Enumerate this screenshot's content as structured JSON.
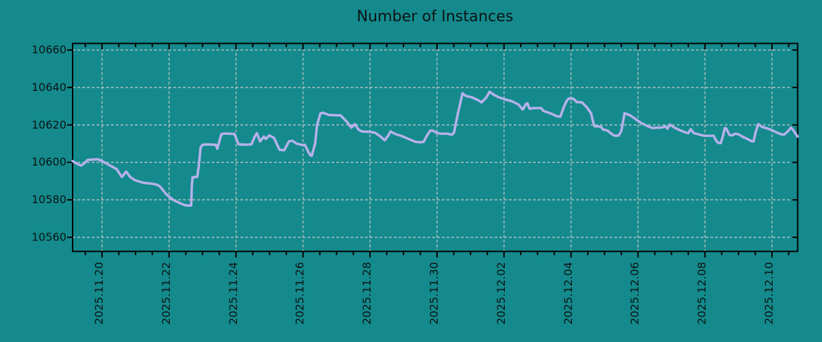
{
  "chart_data": {
    "type": "line",
    "title": "Number of Instances",
    "background_color": "#148a8d",
    "line_color": "#b6b1ea",
    "grid_color": "#c9c9c9",
    "axis_color": "#000000",
    "text_color": "#0b1413",
    "grid": true,
    "legend": false,
    "x_unit": "days since 2025.11.20",
    "xlim_days": [
      -0.88,
      20.76
    ],
    "x_tick_labels": [
      "2025.11.20",
      "2025.11.22",
      "2025.11.24",
      "2025.11.26",
      "2025.11.28",
      "2025.11.30",
      "2025.12.02",
      "2025.12.04",
      "2025.12.06",
      "2025.12.08",
      "2025.12.10"
    ],
    "x_major_tick_days": [
      0,
      2,
      4,
      6,
      8,
      10,
      12,
      14,
      16,
      18,
      20
    ],
    "x_minor_tick_step_days": 0.5,
    "y_ticks": [
      10560,
      10580,
      10600,
      10620,
      10640,
      10660
    ],
    "ylim": [
      10552.5,
      10663.5
    ],
    "series": [
      {
        "name": "Number of Instances",
        "color": "#b6b1ea",
        "points": [
          [
            -0.88,
            10600.7
          ],
          [
            -0.76,
            10599.4
          ],
          [
            -0.63,
            10598.3
          ],
          [
            -0.53,
            10599.5
          ],
          [
            -0.43,
            10601.3
          ],
          [
            -0.29,
            10601.5
          ],
          [
            -0.12,
            10601.7
          ],
          [
            0.06,
            10600.1
          ],
          [
            0.27,
            10598.0
          ],
          [
            0.43,
            10596.5
          ],
          [
            0.59,
            10592.2
          ],
          [
            0.72,
            10595.1
          ],
          [
            0.84,
            10592.2
          ],
          [
            0.98,
            10590.5
          ],
          [
            1.1,
            10589.8
          ],
          [
            1.25,
            10589.1
          ],
          [
            1.49,
            10588.6
          ],
          [
            1.62,
            10588.2
          ],
          [
            1.72,
            10587.3
          ],
          [
            1.8,
            10585.6
          ],
          [
            1.86,
            10584.2
          ],
          [
            1.92,
            10583.0
          ],
          [
            2.0,
            10581.7
          ],
          [
            2.07,
            10580.8
          ],
          [
            2.13,
            10579.9
          ],
          [
            2.21,
            10579.2
          ],
          [
            2.31,
            10578.4
          ],
          [
            2.41,
            10577.6
          ],
          [
            2.47,
            10577.2
          ],
          [
            2.56,
            10577.0
          ],
          [
            2.66,
            10577.0
          ],
          [
            2.68,
            10588.0
          ],
          [
            2.7,
            10592.0
          ],
          [
            2.78,
            10592.2
          ],
          [
            2.84,
            10592.3
          ],
          [
            2.88,
            10597.0
          ],
          [
            2.91,
            10602.0
          ],
          [
            2.94,
            10608.0
          ],
          [
            3.0,
            10609.4
          ],
          [
            3.15,
            10609.6
          ],
          [
            3.3,
            10609.5
          ],
          [
            3.4,
            10609.4
          ],
          [
            3.44,
            10607.3
          ],
          [
            3.5,
            10611.0
          ],
          [
            3.56,
            10615.0
          ],
          [
            3.65,
            10615.4
          ],
          [
            3.8,
            10615.3
          ],
          [
            3.95,
            10615.2
          ],
          [
            4.02,
            10612.0
          ],
          [
            4.07,
            10609.7
          ],
          [
            4.2,
            10609.5
          ],
          [
            4.35,
            10609.5
          ],
          [
            4.46,
            10609.6
          ],
          [
            4.55,
            10613.5
          ],
          [
            4.62,
            10615.6
          ],
          [
            4.72,
            10611.2
          ],
          [
            4.83,
            10613.8
          ],
          [
            4.89,
            10612.5
          ],
          [
            4.99,
            10614.4
          ],
          [
            5.13,
            10613.1
          ],
          [
            5.24,
            10609.0
          ],
          [
            5.3,
            10606.7
          ],
          [
            5.44,
            10606.5
          ],
          [
            5.58,
            10611.3
          ],
          [
            5.68,
            10611.5
          ],
          [
            5.81,
            10610.0
          ],
          [
            5.95,
            10609.4
          ],
          [
            6.05,
            10609.4
          ],
          [
            6.09,
            10608.2
          ],
          [
            6.16,
            10605.5
          ],
          [
            6.22,
            10603.7
          ],
          [
            6.26,
            10603.6
          ],
          [
            6.36,
            10610.0
          ],
          [
            6.42,
            10620.0
          ],
          [
            6.52,
            10626.1
          ],
          [
            6.6,
            10626.5
          ],
          [
            6.77,
            10625.3
          ],
          [
            6.95,
            10625.2
          ],
          [
            7.12,
            10625.1
          ],
          [
            7.32,
            10621.5
          ],
          [
            7.44,
            10618.6
          ],
          [
            7.55,
            10620.4
          ],
          [
            7.65,
            10617.6
          ],
          [
            7.75,
            10616.5
          ],
          [
            8.0,
            10616.3
          ],
          [
            8.15,
            10615.8
          ],
          [
            8.3,
            10614.0
          ],
          [
            8.44,
            10611.8
          ],
          [
            8.55,
            10614.5
          ],
          [
            8.61,
            10616.5
          ],
          [
            8.75,
            10615.2
          ],
          [
            8.96,
            10614.0
          ],
          [
            9.16,
            10612.4
          ],
          [
            9.35,
            10611.0
          ],
          [
            9.5,
            10610.7
          ],
          [
            9.6,
            10611.0
          ],
          [
            9.69,
            10614.0
          ],
          [
            9.8,
            10617.0
          ],
          [
            9.88,
            10616.9
          ],
          [
            9.98,
            10615.8
          ],
          [
            10.1,
            10615.3
          ],
          [
            10.3,
            10615.3
          ],
          [
            10.45,
            10614.8
          ],
          [
            10.51,
            10616.0
          ],
          [
            10.61,
            10625.0
          ],
          [
            10.76,
            10636.9
          ],
          [
            10.86,
            10635.5
          ],
          [
            11.06,
            10634.6
          ],
          [
            11.27,
            10632.8
          ],
          [
            11.33,
            10632.0
          ],
          [
            11.47,
            10634.7
          ],
          [
            11.57,
            10637.7
          ],
          [
            11.68,
            10636.3
          ],
          [
            11.82,
            10634.9
          ],
          [
            12.02,
            10633.7
          ],
          [
            12.23,
            10632.7
          ],
          [
            12.43,
            10630.9
          ],
          [
            12.56,
            10628.2
          ],
          [
            12.66,
            10631.3
          ],
          [
            12.7,
            10631.5
          ],
          [
            12.76,
            10628.7
          ],
          [
            12.9,
            10629.0
          ],
          [
            13.11,
            10629.0
          ],
          [
            13.17,
            10627.5
          ],
          [
            13.37,
            10626.3
          ],
          [
            13.58,
            10624.6
          ],
          [
            13.68,
            10624.4
          ],
          [
            13.78,
            10629.2
          ],
          [
            13.87,
            10632.8
          ],
          [
            13.93,
            10634.1
          ],
          [
            14.07,
            10634.0
          ],
          [
            14.17,
            10632.2
          ],
          [
            14.33,
            10632.0
          ],
          [
            14.48,
            10629.2
          ],
          [
            14.6,
            10626.2
          ],
          [
            14.66,
            10621.5
          ],
          [
            14.7,
            10619.3
          ],
          [
            14.89,
            10619.1
          ],
          [
            14.95,
            10617.6
          ],
          [
            15.09,
            10617.0
          ],
          [
            15.21,
            10615.2
          ],
          [
            15.3,
            10614.2
          ],
          [
            15.42,
            10614.3
          ],
          [
            15.5,
            10616.5
          ],
          [
            15.6,
            10626.3
          ],
          [
            15.77,
            10625.1
          ],
          [
            15.95,
            10622.8
          ],
          [
            16.1,
            10621.0
          ],
          [
            16.3,
            10619.2
          ],
          [
            16.45,
            10618.3
          ],
          [
            16.55,
            10618.5
          ],
          [
            16.7,
            10618.6
          ],
          [
            16.82,
            10619.2
          ],
          [
            16.88,
            10618.0
          ],
          [
            16.95,
            10620.2
          ],
          [
            17.1,
            10618.4
          ],
          [
            17.25,
            10617.2
          ],
          [
            17.4,
            10616.1
          ],
          [
            17.5,
            10615.6
          ],
          [
            17.57,
            10617.7
          ],
          [
            17.67,
            10615.6
          ],
          [
            17.8,
            10615.0
          ],
          [
            17.95,
            10614.3
          ],
          [
            18.02,
            10614.2
          ],
          [
            18.26,
            10614.2
          ],
          [
            18.32,
            10612.0
          ],
          [
            18.39,
            10610.4
          ],
          [
            18.47,
            10610.3
          ],
          [
            18.53,
            10613.7
          ],
          [
            18.59,
            10618.3
          ],
          [
            18.63,
            10618.2
          ],
          [
            18.73,
            10614.7
          ],
          [
            18.8,
            10614.4
          ],
          [
            18.9,
            10615.3
          ],
          [
            19.0,
            10615.0
          ],
          [
            19.14,
            10613.5
          ],
          [
            19.24,
            10612.8
          ],
          [
            19.39,
            10611.3
          ],
          [
            19.45,
            10611.2
          ],
          [
            19.51,
            10616.0
          ],
          [
            19.59,
            10620.4
          ],
          [
            19.71,
            10618.9
          ],
          [
            19.86,
            10618.1
          ],
          [
            20.0,
            10617.2
          ],
          [
            20.12,
            10616.1
          ],
          [
            20.27,
            10615.0
          ],
          [
            20.36,
            10614.8
          ],
          [
            20.47,
            10616.5
          ],
          [
            20.57,
            10618.6
          ],
          [
            20.67,
            10616.3
          ],
          [
            20.76,
            10613.8
          ]
        ]
      }
    ]
  }
}
